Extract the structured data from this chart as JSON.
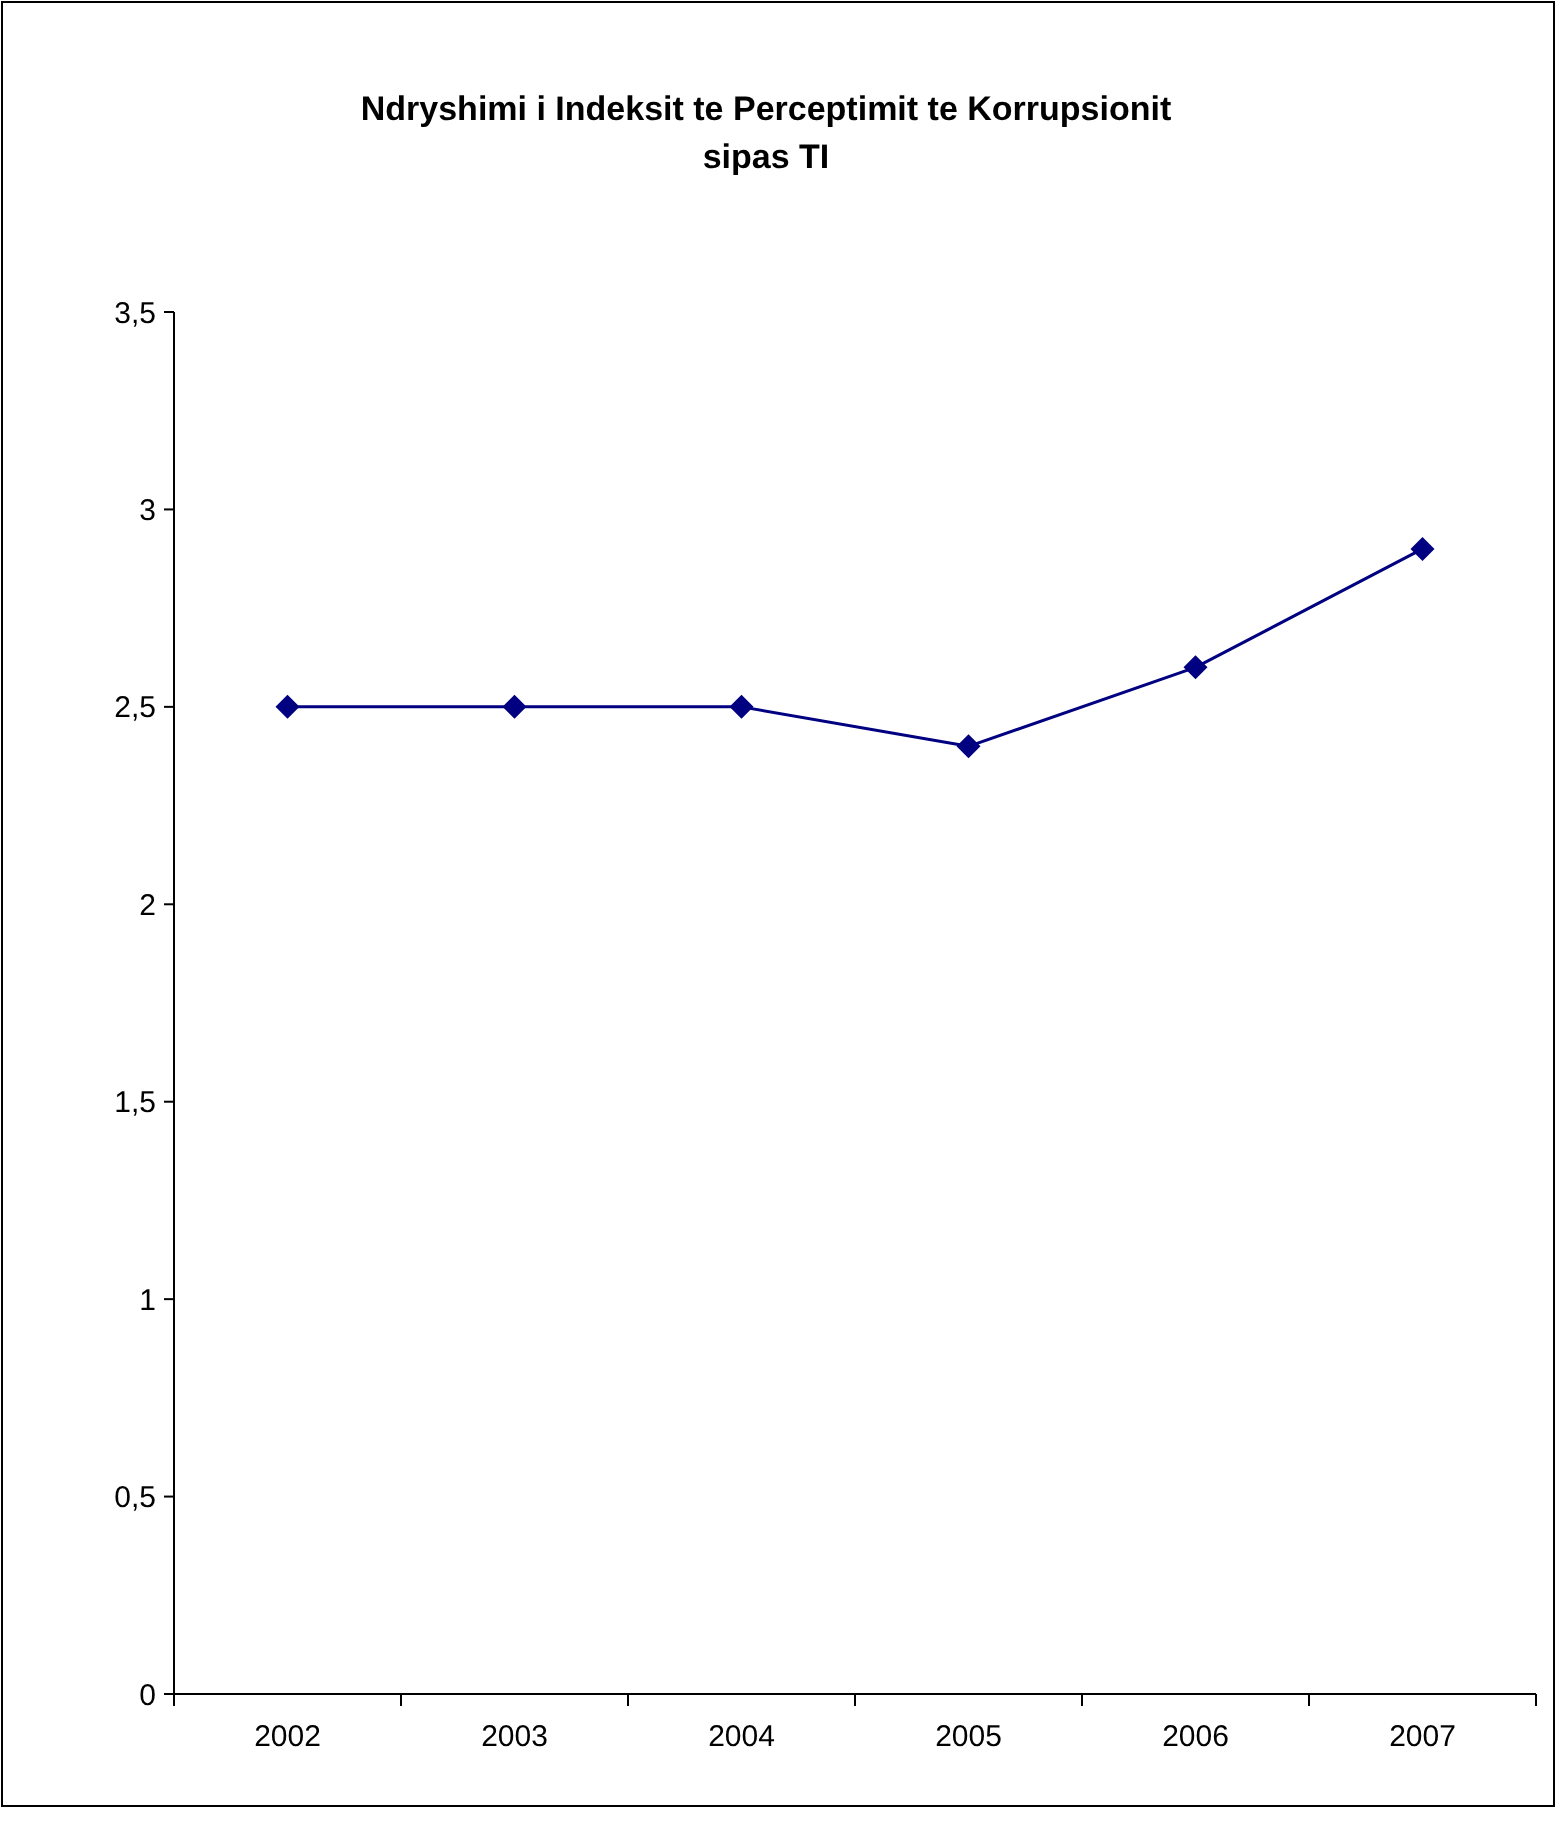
{
  "chart_data": {
    "type": "line",
    "title": "Ndryshimi i Indeksit te Perceptimit te Korrupsionit sipas TI",
    "categories": [
      "2002",
      "2003",
      "2004",
      "2005",
      "2006",
      "2007"
    ],
    "series": [
      {
        "color": "#000080",
        "values": [
          2.5,
          2.5,
          2.5,
          2.4,
          2.6,
          2.9
        ]
      }
    ],
    "ylim": [
      0,
      3.5
    ],
    "yticks": [
      0,
      {
        "value": 0.5,
        "label": "0,5"
      },
      1,
      {
        "value": 1.5,
        "label": "1,5"
      },
      2,
      {
        "value": 2.5,
        "label": "2,5"
      },
      3,
      {
        "value": 3.5,
        "label": "3,5"
      }
    ],
    "marker": "diamond",
    "line_style": "solid",
    "grid": false
  }
}
